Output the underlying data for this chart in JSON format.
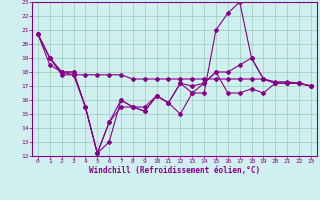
{
  "xlabel": "Windchill (Refroidissement éolien,°C)",
  "xlim": [
    -0.5,
    23.5
  ],
  "ylim": [
    12,
    23
  ],
  "xticks": [
    0,
    1,
    2,
    3,
    4,
    5,
    6,
    7,
    8,
    9,
    10,
    11,
    12,
    13,
    14,
    15,
    16,
    17,
    18,
    19,
    20,
    21,
    22,
    23
  ],
  "yticks": [
    12,
    13,
    14,
    15,
    16,
    17,
    18,
    19,
    20,
    21,
    22,
    23
  ],
  "bg_color": "#cff0ee",
  "line_color": "#880088",
  "grid_color": "#99ccbb",
  "lines": [
    [
      20.7,
      19.0,
      18.0,
      18.0,
      15.5,
      12.2,
      13.0,
      16.0,
      15.5,
      15.2,
      16.3,
      15.8,
      15.0,
      16.5,
      16.5,
      21.0,
      22.2,
      23.0,
      19.0,
      17.5,
      17.2,
      17.2,
      17.2,
      17.0
    ],
    [
      20.7,
      19.0,
      17.8,
      17.8,
      15.5,
      12.2,
      14.4,
      16.0,
      15.5,
      15.2,
      16.3,
      15.8,
      17.2,
      16.5,
      17.2,
      18.0,
      18.0,
      18.5,
      19.0,
      17.5,
      17.2,
      17.2,
      17.2,
      17.0
    ],
    [
      20.7,
      18.5,
      18.0,
      17.8,
      17.8,
      17.8,
      17.8,
      17.8,
      17.5,
      17.5,
      17.5,
      17.5,
      17.5,
      17.5,
      17.5,
      17.5,
      17.5,
      17.5,
      17.5,
      17.5,
      17.3,
      17.3,
      17.2,
      17.0
    ],
    [
      20.7,
      19.0,
      18.0,
      18.0,
      15.5,
      12.2,
      14.4,
      15.5,
      15.5,
      15.5,
      16.3,
      15.8,
      17.2,
      17.0,
      17.2,
      18.0,
      16.5,
      16.5,
      16.8,
      16.5,
      17.2,
      17.2,
      17.2,
      17.0
    ]
  ]
}
